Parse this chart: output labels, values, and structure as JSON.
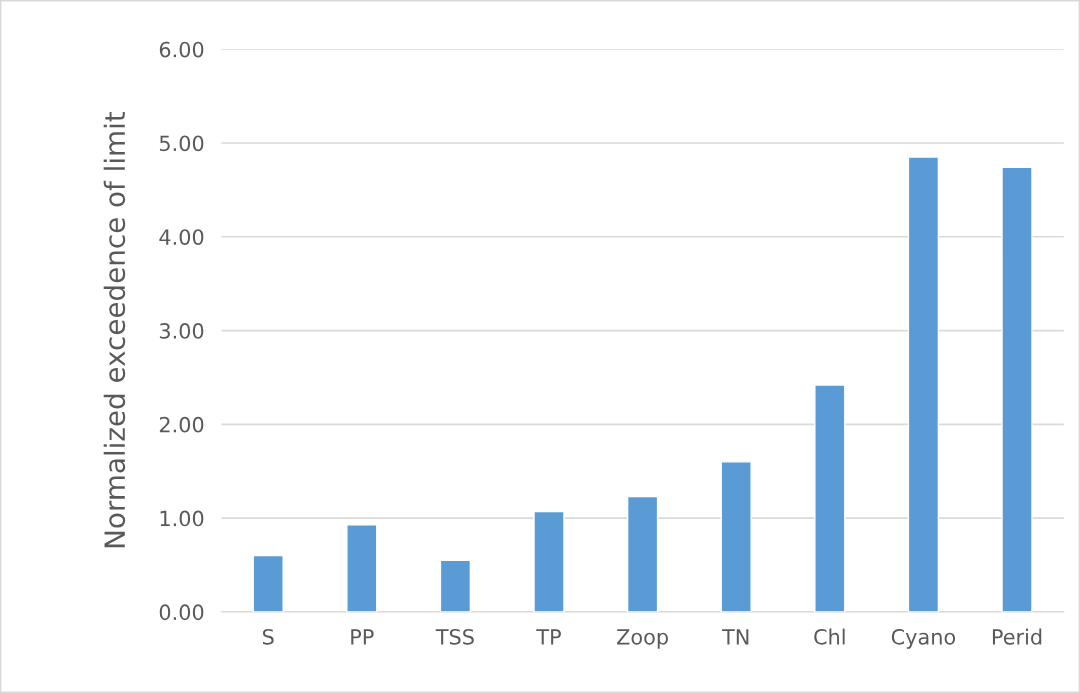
{
  "chart_data": {
    "type": "bar",
    "ylabel": "Normalized exceedence of limit",
    "categories": [
      "S",
      "PP",
      "TSS",
      "TP",
      "Zoop",
      "TN",
      "Chl",
      "Cyano",
      "Perid"
    ],
    "values": [
      0.6,
      0.93,
      0.55,
      1.07,
      1.23,
      1.6,
      2.42,
      4.85,
      4.74
    ],
    "color": "#5b9bd5",
    "ylim": [
      0,
      6
    ],
    "yticks": [
      {
        "value": 0,
        "label": "0.00"
      },
      {
        "value": 1,
        "label": "1.00"
      },
      {
        "value": 2,
        "label": "2.00"
      },
      {
        "value": 3,
        "label": "3.00"
      },
      {
        "value": 4,
        "label": "4.00"
      },
      {
        "value": 5,
        "label": "5.00"
      },
      {
        "value": 6,
        "label": "6.00"
      }
    ],
    "grid": "y"
  }
}
